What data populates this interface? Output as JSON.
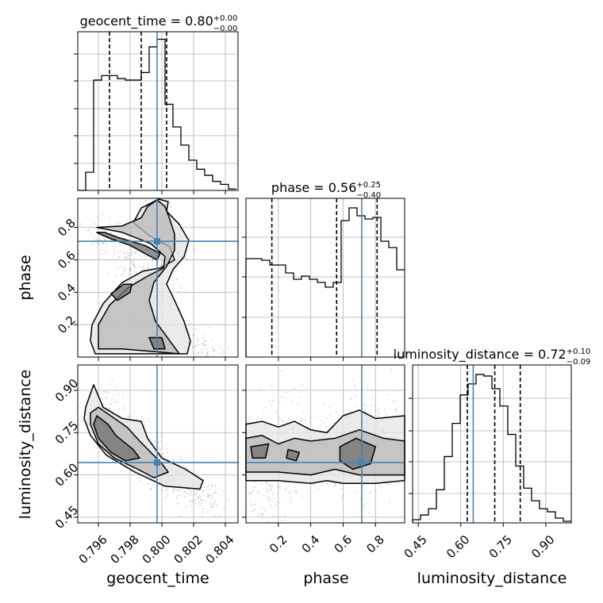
{
  "chart_data": {
    "type": "corner",
    "parameters": [
      {
        "name": "geocent_time",
        "median": "0.80",
        "plus": "+0.00",
        "minus": "−0.00",
        "truth": 0.7997,
        "quantiles": [
          0.7967,
          0.7987,
          0.8003
        ]
      },
      {
        "name": "phase",
        "median": "0.56",
        "plus": "+0.25",
        "minus": "−0.40",
        "truth": 0.715,
        "quantiles": [
          0.16,
          0.56,
          0.81
        ]
      },
      {
        "name": "luminosity_distance",
        "median": "0.72",
        "plus": "+0.10",
        "minus": "−0.09",
        "truth": 0.644,
        "quantiles": [
          0.623,
          0.72,
          0.81
        ]
      }
    ],
    "ranges": {
      "geocent_time": [
        0.7947,
        0.8048
      ],
      "phase": [
        0.0,
        0.98
      ],
      "luminosity_distance": [
        0.43,
        0.99
      ]
    },
    "tick_labels": {
      "geocent_time": [
        "0.796",
        "0.798",
        "0.800",
        "0.802",
        "0.804"
      ],
      "phase_x": [
        "0.2",
        "0.4",
        "0.6",
        "0.8"
      ],
      "phase_y": [
        "0.2",
        "0.4",
        "0.6",
        "0.8"
      ],
      "luminosity_distance": [
        "0.45",
        "0.60",
        "0.75",
        "0.90"
      ]
    },
    "histograms": {
      "geocent_time": {
        "bin_start": 0.7947,
        "bin_width": 0.0005,
        "values": [
          0,
          0.12,
          0.73,
          0.76,
          0.76,
          0.74,
          0.73,
          0.73,
          0.78,
          0.95,
          1.0,
          0.57,
          0.42,
          0.3,
          0.2,
          0.14,
          0.1,
          0.06,
          0.04,
          0.01
        ]
      },
      "phase": {
        "bin_start": 0.0,
        "bin_width": 0.049,
        "values": [
          0.62,
          0.62,
          0.61,
          0.58,
          0.58,
          0.53,
          0.49,
          0.51,
          0.49,
          0.47,
          0.44,
          0.47,
          0.86,
          0.94,
          0.89,
          0.87,
          0.88,
          0.73,
          0.69,
          0.55
        ]
      },
      "luminosity_distance": {
        "bin_start": 0.43,
        "bin_width": 0.028,
        "values": [
          0.02,
          0.05,
          0.09,
          0.21,
          0.42,
          0.63,
          0.81,
          0.88,
          0.94,
          0.93,
          0.85,
          0.74,
          0.56,
          0.36,
          0.22,
          0.14,
          0.09,
          0.07,
          0.03,
          0.01
        ]
      }
    },
    "contours": {
      "phase_vs_geocent_time": [
        {
          "level": "outer",
          "points": [
            [
              0.7958,
              0.02
            ],
            [
              0.7955,
              0.1
            ],
            [
              0.7956,
              0.2
            ],
            [
              0.7963,
              0.33
            ],
            [
              0.7975,
              0.46
            ],
            [
              0.7988,
              0.53
            ],
            [
              0.7999,
              0.55
            ],
            [
              0.8008,
              0.6
            ],
            [
              0.8005,
              0.68
            ],
            [
              0.7992,
              0.75
            ],
            [
              0.7982,
              0.83
            ],
            [
              0.7987,
              0.92
            ],
            [
              0.7998,
              0.975
            ],
            [
              0.8004,
              0.96
            ],
            [
              0.8003,
              0.9
            ],
            [
              0.8011,
              0.82
            ],
            [
              0.8017,
              0.72
            ],
            [
              0.8014,
              0.62
            ],
            [
              0.8007,
              0.54
            ],
            [
              0.8003,
              0.45
            ],
            [
              0.8008,
              0.35
            ],
            [
              0.8014,
              0.22
            ],
            [
              0.8018,
              0.1
            ],
            [
              0.8016,
              0.02
            ]
          ]
        },
        {
          "level": "middle",
          "points": [
            [
              0.796,
              0.05
            ],
            [
              0.796,
              0.2
            ],
            [
              0.7967,
              0.32
            ],
            [
              0.7979,
              0.43
            ],
            [
              0.7991,
              0.5
            ],
            [
              0.8001,
              0.55
            ],
            [
              0.8002,
              0.62
            ],
            [
              0.7993,
              0.7
            ],
            [
              0.7975,
              0.77
            ],
            [
              0.7959,
              0.8
            ],
            [
              0.7975,
              0.81
            ],
            [
              0.7987,
              0.86
            ],
            [
              0.7991,
              0.93
            ],
            [
              0.7997,
              0.97
            ],
            [
              0.8002,
              0.93
            ],
            [
              0.8005,
              0.85
            ],
            [
              0.8008,
              0.76
            ],
            [
              0.8008,
              0.66
            ],
            [
              0.8003,
              0.56
            ],
            [
              0.7995,
              0.46
            ],
            [
              0.7992,
              0.35
            ],
            [
              0.7996,
              0.22
            ],
            [
              0.8005,
              0.1
            ],
            [
              0.8011,
              0.02
            ],
            [
              0.7975,
              0.05
            ]
          ]
        },
        {
          "level": "inner",
          "points": [
            [
              0.7964,
              0.77
            ],
            [
              0.7972,
              0.74
            ],
            [
              0.7989,
              0.69
            ],
            [
              0.7999,
              0.64
            ],
            [
              0.7997,
              0.6
            ],
            [
              0.7991,
              0.63
            ],
            [
              0.798,
              0.69
            ],
            [
              0.7968,
              0.73
            ],
            [
              0.7962,
              0.755
            ],
            [
              0.7959,
              0.77
            ]
          ]
        },
        {
          "level": "inner",
          "points": [
            [
              0.7976,
              0.45
            ],
            [
              0.7968,
              0.39
            ],
            [
              0.7972,
              0.35
            ],
            [
              0.798,
              0.4
            ],
            [
              0.7981,
              0.45
            ]
          ]
        },
        {
          "level": "inner",
          "points": [
            [
              0.7992,
              0.12
            ],
            [
              0.7995,
              0.05
            ],
            [
              0.8002,
              0.05
            ],
            [
              0.8,
              0.12
            ]
          ]
        }
      ],
      "luminosity_distance_vs_geocent_time": [
        {
          "level": "outer",
          "points": [
            [
              0.7952,
              0.84
            ],
            [
              0.7957,
              0.92
            ],
            [
              0.7963,
              0.84
            ],
            [
              0.7975,
              0.8
            ],
            [
              0.7987,
              0.79
            ],
            [
              0.7991,
              0.73
            ],
            [
              0.8,
              0.66
            ],
            [
              0.8015,
              0.62
            ],
            [
              0.8026,
              0.58
            ],
            [
              0.8024,
              0.55
            ],
            [
              0.8002,
              0.56
            ],
            [
              0.7983,
              0.61
            ],
            [
              0.7965,
              0.67
            ],
            [
              0.7955,
              0.74
            ],
            [
              0.7951,
              0.8
            ]
          ]
        },
        {
          "level": "middle",
          "points": [
            [
              0.7955,
              0.82
            ],
            [
              0.796,
              0.84
            ],
            [
              0.7978,
              0.77
            ],
            [
              0.7986,
              0.72
            ],
            [
              0.8,
              0.64
            ],
            [
              0.8004,
              0.61
            ],
            [
              0.7995,
              0.59
            ],
            [
              0.7985,
              0.62
            ],
            [
              0.797,
              0.66
            ],
            [
              0.796,
              0.71
            ],
            [
              0.7955,
              0.78
            ]
          ]
        },
        {
          "level": "inner",
          "points": [
            [
              0.7959,
              0.81
            ],
            [
              0.7966,
              0.78
            ],
            [
              0.7971,
              0.74
            ],
            [
              0.7982,
              0.69
            ],
            [
              0.7986,
              0.66
            ],
            [
              0.7977,
              0.65
            ],
            [
              0.7968,
              0.68
            ],
            [
              0.796,
              0.73
            ],
            [
              0.7957,
              0.78
            ]
          ]
        }
      ],
      "luminosity_distance_vs_phase": [
        {
          "level": "outer",
          "points": [
            [
              0.0,
              0.78
            ],
            [
              0.1,
              0.79
            ],
            [
              0.2,
              0.77
            ],
            [
              0.3,
              0.79
            ],
            [
              0.4,
              0.76
            ],
            [
              0.5,
              0.75
            ],
            [
              0.6,
              0.81
            ],
            [
              0.7,
              0.83
            ],
            [
              0.8,
              0.8
            ],
            [
              0.98,
              0.81
            ],
            [
              0.98,
              0.58
            ],
            [
              0.8,
              0.57
            ],
            [
              0.6,
              0.57
            ],
            [
              0.5,
              0.58
            ],
            [
              0.4,
              0.57
            ],
            [
              0.2,
              0.58
            ],
            [
              0.0,
              0.58
            ]
          ]
        },
        {
          "level": "middle",
          "points": [
            [
              0.0,
              0.73
            ],
            [
              0.1,
              0.74
            ],
            [
              0.2,
              0.71
            ],
            [
              0.3,
              0.73
            ],
            [
              0.4,
              0.72
            ],
            [
              0.55,
              0.73
            ],
            [
              0.7,
              0.76
            ],
            [
              0.85,
              0.73
            ],
            [
              0.98,
              0.72
            ],
            [
              0.98,
              0.6
            ],
            [
              0.85,
              0.6
            ],
            [
              0.7,
              0.6
            ],
            [
              0.55,
              0.62
            ],
            [
              0.4,
              0.6
            ],
            [
              0.2,
              0.61
            ],
            [
              0.0,
              0.61
            ]
          ]
        },
        {
          "level": "inner",
          "points": [
            [
              0.58,
              0.7
            ],
            [
              0.68,
              0.73
            ],
            [
              0.8,
              0.7
            ],
            [
              0.77,
              0.64
            ],
            [
              0.66,
              0.62
            ],
            [
              0.58,
              0.65
            ]
          ]
        },
        {
          "level": "inner",
          "points": [
            [
              0.03,
              0.7
            ],
            [
              0.14,
              0.71
            ],
            [
              0.12,
              0.66
            ],
            [
              0.04,
              0.66
            ]
          ]
        },
        {
          "level": "inner",
          "points": [
            [
              0.26,
              0.69
            ],
            [
              0.33,
              0.68
            ],
            [
              0.31,
              0.65
            ],
            [
              0.25,
              0.66
            ]
          ]
        }
      ]
    },
    "samples": {
      "geocent_time": [
        0.7961,
        0.7965,
        0.7972,
        0.7978,
        0.7983,
        0.7988,
        0.7992,
        0.7996,
        0.7999,
        0.8002,
        0.8006,
        0.801,
        0.8014,
        0.8019,
        0.8024,
        0.8029,
        0.8035,
        0.7958,
        0.7969,
        0.7981,
        0.7995,
        0.8001,
        0.8008,
        0.8016,
        0.7975,
        0.7989,
        0.7963,
        0.7985,
        0.8003,
        0.8012,
        0.7967,
        0.7993,
        0.8021,
        0.7979,
        0.7997,
        0.8005,
        0.7971,
        0.7986,
        0.8009,
        0.8027
      ],
      "phase": [
        0.74,
        0.72,
        0.7,
        0.64,
        0.6,
        0.55,
        0.5,
        0.42,
        0.35,
        0.3,
        0.22,
        0.15,
        0.1,
        0.08,
        0.05,
        0.03,
        0.02,
        0.8,
        0.76,
        0.62,
        0.88,
        0.93,
        0.7,
        0.12,
        0.4,
        0.28,
        0.22,
        0.47,
        0.58,
        0.65,
        0.13,
        0.18,
        0.05,
        0.5,
        0.95,
        0.78,
        0.3,
        0.66,
        0.42,
        0.04
      ],
      "luminosity_distance": [
        0.82,
        0.8,
        0.76,
        0.73,
        0.7,
        0.68,
        0.66,
        0.64,
        0.62,
        0.61,
        0.6,
        0.58,
        0.56,
        0.54,
        0.53,
        0.51,
        0.5,
        0.88,
        0.79,
        0.72,
        0.64,
        0.62,
        0.57,
        0.55,
        0.75,
        0.69,
        0.86,
        0.71,
        0.6,
        0.58,
        0.84,
        0.67,
        0.52,
        0.77,
        0.65,
        0.63,
        0.81,
        0.7,
        0.59,
        0.53
      ]
    }
  }
}
